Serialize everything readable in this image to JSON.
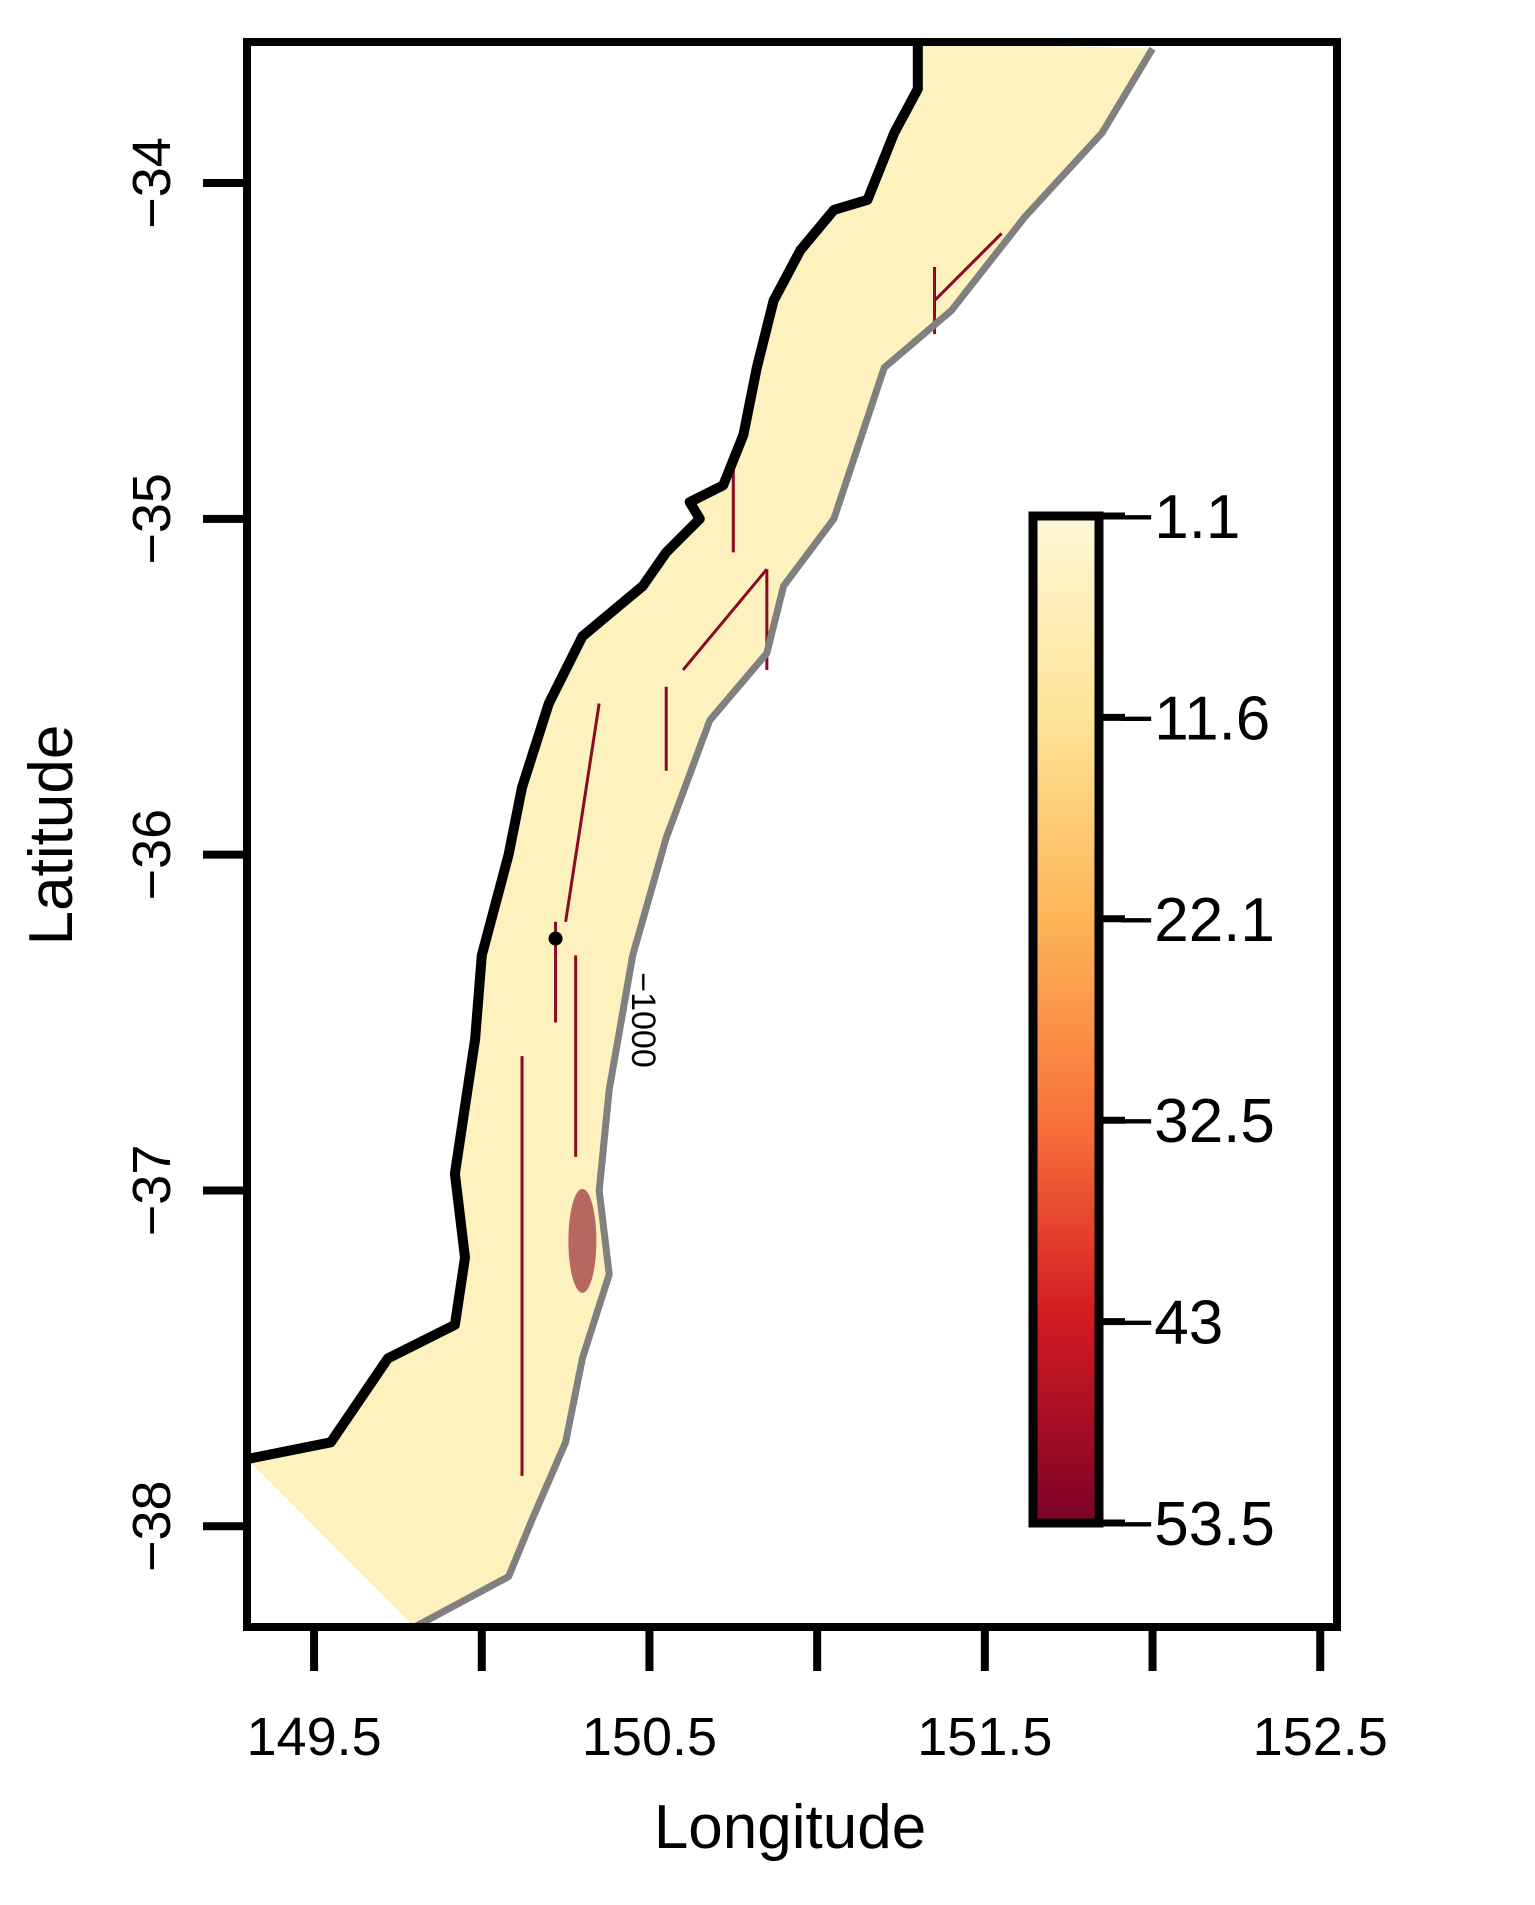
{
  "chart_data": {
    "type": "heatmap",
    "xlabel": "Longitude",
    "ylabel": "Latitude",
    "xlim": [
      149.3,
      152.55
    ],
    "ylim": [
      -38.3,
      -33.58
    ],
    "x_ticks": [
      149.5,
      150.5,
      151.5,
      152.5
    ],
    "x_minor_ticks": [
      150.0,
      151.0,
      152.0
    ],
    "y_ticks": [
      -34,
      -35,
      -36,
      -37,
      -38
    ],
    "x_tick_labels": [
      "149.5",
      "150.5",
      "151.5",
      "152.5"
    ],
    "y_tick_labels": [
      "−34",
      "−35",
      "−36",
      "−37",
      "−38"
    ],
    "contour_label": "−1000",
    "colorbar": {
      "labels": [
        "−1.1",
        "−11.6",
        "−22.1",
        "−32.5",
        "−43",
        "−53.5"
      ],
      "range": [
        -53.5,
        -1.1
      ],
      "colors": [
        "#fff8d6",
        "#fde497",
        "#fdb557",
        "#f8733a",
        "#d11a22",
        "#7b0226"
      ]
    },
    "coastline": [
      [
        151.3,
        -33.58
      ],
      [
        151.3,
        -33.72
      ],
      [
        151.23,
        -33.85
      ],
      [
        151.15,
        -34.05
      ],
      [
        151.05,
        -34.08
      ],
      [
        150.95,
        -34.2
      ],
      [
        150.87,
        -34.35
      ],
      [
        150.82,
        -34.55
      ],
      [
        150.78,
        -34.75
      ],
      [
        150.72,
        -34.9
      ],
      [
        150.62,
        -34.95
      ],
      [
        150.65,
        -35.0
      ],
      [
        150.55,
        -35.1
      ],
      [
        150.48,
        -35.2
      ],
      [
        150.3,
        -35.35
      ],
      [
        150.2,
        -35.55
      ],
      [
        150.12,
        -35.8
      ],
      [
        150.08,
        -36.0
      ],
      [
        150.0,
        -36.3
      ],
      [
        149.98,
        -36.55
      ],
      [
        149.92,
        -36.95
      ],
      [
        149.95,
        -37.2
      ],
      [
        149.92,
        -37.4
      ],
      [
        149.72,
        -37.5
      ],
      [
        149.55,
        -37.75
      ],
      [
        149.3,
        -37.8
      ]
    ],
    "depth_contour": [
      [
        152.0,
        -33.6
      ],
      [
        151.85,
        -33.85
      ],
      [
        151.62,
        -34.1
      ],
      [
        151.4,
        -34.38
      ],
      [
        151.2,
        -34.55
      ],
      [
        151.05,
        -35.0
      ],
      [
        150.9,
        -35.2
      ],
      [
        150.85,
        -35.4
      ],
      [
        150.68,
        -35.6
      ],
      [
        150.55,
        -35.95
      ],
      [
        150.45,
        -36.3
      ],
      [
        150.38,
        -36.7
      ],
      [
        150.35,
        -37.0
      ],
      [
        150.38,
        -37.25
      ],
      [
        150.3,
        -37.5
      ],
      [
        150.25,
        -37.75
      ],
      [
        150.15,
        -37.98
      ],
      [
        150.08,
        -38.15
      ],
      [
        149.8,
        -38.3
      ]
    ],
    "point": [
      150.22,
      -36.25
    ]
  }
}
